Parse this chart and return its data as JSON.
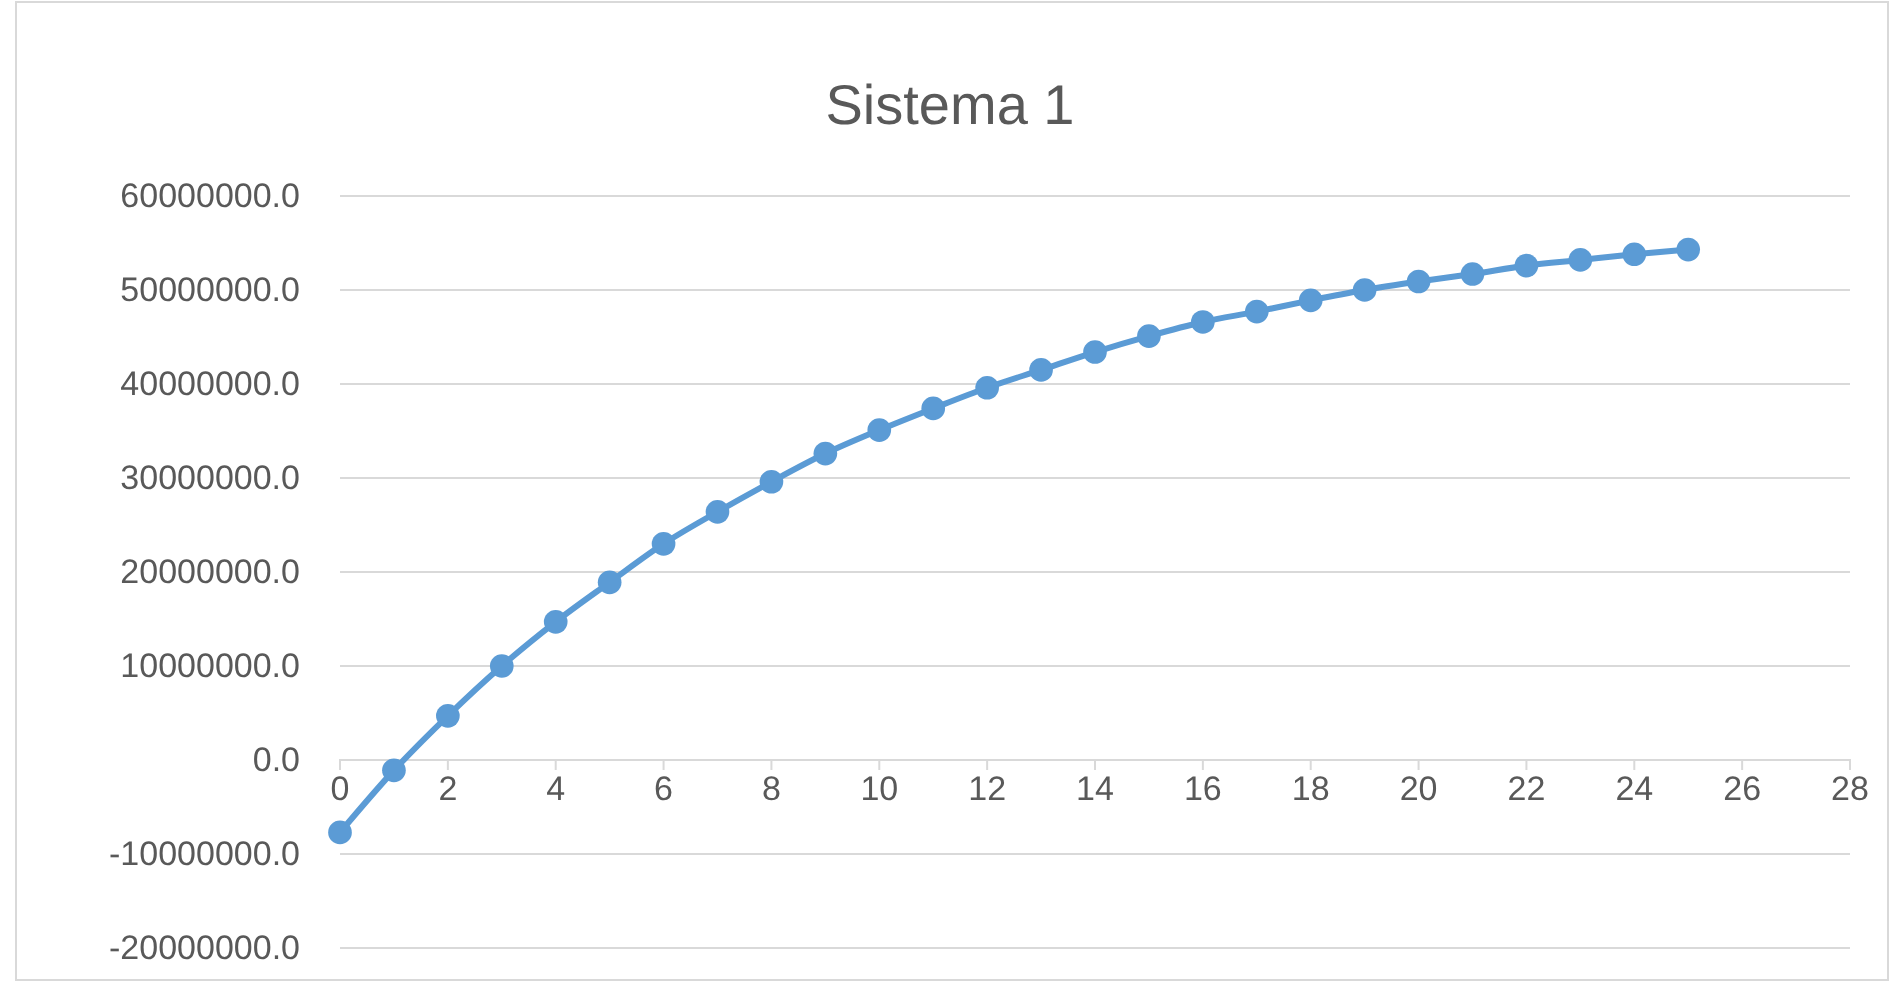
{
  "chart_data": {
    "type": "line",
    "title": "Sistema 1",
    "x": [
      0,
      1,
      2,
      3,
      4,
      5,
      6,
      7,
      8,
      9,
      10,
      11,
      12,
      13,
      14,
      15,
      16,
      17,
      18,
      19,
      20,
      21,
      22,
      23,
      24,
      25
    ],
    "series": [
      {
        "color": "#5b9bd5",
        "values": [
          -7700000,
          -1100000,
          4700000,
          10000000,
          14700000,
          18900000,
          23000000,
          26400000,
          29600000,
          32600000,
          35100000,
          37400000,
          39600000,
          41500000,
          43400000,
          45100000,
          46600000,
          47700000,
          48900000,
          50000000,
          50900000,
          51700000,
          52600000,
          53200000,
          53800000,
          54300000
        ]
      }
    ],
    "xlim": [
      0,
      28
    ],
    "xticks": [
      0,
      2,
      4,
      6,
      8,
      10,
      12,
      14,
      16,
      18,
      20,
      22,
      24,
      26,
      28
    ],
    "ylim": [
      -20000000,
      60000000
    ],
    "yticks": [
      {
        "value": -20000000,
        "label": "-20000000.0"
      },
      {
        "value": -10000000,
        "label": "-10000000.0"
      },
      {
        "value": 0,
        "label": "0.0"
      },
      {
        "value": 10000000,
        "label": "10000000.0"
      },
      {
        "value": 20000000,
        "label": "20000000.0"
      },
      {
        "value": 30000000,
        "label": "30000000.0"
      },
      {
        "value": 40000000,
        "label": "40000000.0"
      },
      {
        "value": 50000000,
        "label": "50000000.0"
      },
      {
        "value": 60000000,
        "label": "60000000.0"
      }
    ],
    "grid": "y",
    "marker": "circle",
    "line_style": "solid"
  }
}
